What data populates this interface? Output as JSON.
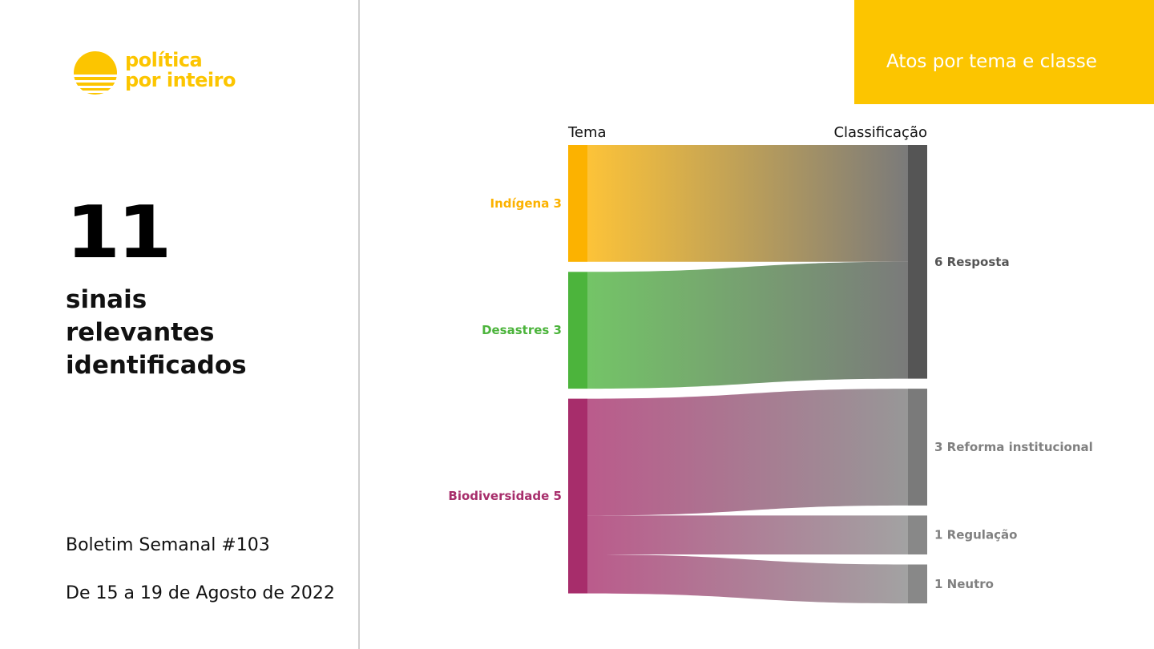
{
  "brand": {
    "name_line1": "política",
    "name_line2": "por inteiro",
    "color": "#fcc500"
  },
  "summary": {
    "count": "11",
    "caption_lines": [
      "sinais",
      "relevantes",
      "identificados"
    ]
  },
  "bulletin": {
    "title": "Boletim Semanal #103",
    "date_range": "De 15 a 19 de Agosto de 2022"
  },
  "header": {
    "title": "Atos por tema e classe"
  },
  "chart_data": {
    "type": "sankey",
    "source_axis_label": "Tema",
    "target_axis_label": "Classificação",
    "sources": [
      {
        "name": "Indígena",
        "value": 3,
        "label": "Indígena 3",
        "color": "#fcb200"
      },
      {
        "name": "Desastres",
        "value": 3,
        "label": "Desastres 3",
        "color": "#4cb43c"
      },
      {
        "name": "Biodiversidade",
        "value": 5,
        "label": "Biodiversidade 5",
        "color": "#a72d6b"
      }
    ],
    "targets": [
      {
        "name": "Resposta",
        "value": 6,
        "label": "6 Resposta",
        "color": "#555555"
      },
      {
        "name": "Reforma institucional",
        "value": 3,
        "label": "3 Reforma institucional",
        "color": "#7a7a7a"
      },
      {
        "name": "Regulação",
        "value": 1,
        "label": "1 Regulação",
        "color": "#888888"
      },
      {
        "name": "Neutro",
        "value": 1,
        "label": "1 Neutro",
        "color": "#888888"
      }
    ],
    "links": [
      {
        "source": "Indígena",
        "target": "Resposta",
        "value": 3
      },
      {
        "source": "Desastres",
        "target": "Resposta",
        "value": 3
      },
      {
        "source": "Biodiversidade",
        "target": "Reforma institucional",
        "value": 3
      },
      {
        "source": "Biodiversidade",
        "target": "Regulação",
        "value": 1
      },
      {
        "source": "Biodiversidade",
        "target": "Neutro",
        "value": 1
      }
    ]
  }
}
